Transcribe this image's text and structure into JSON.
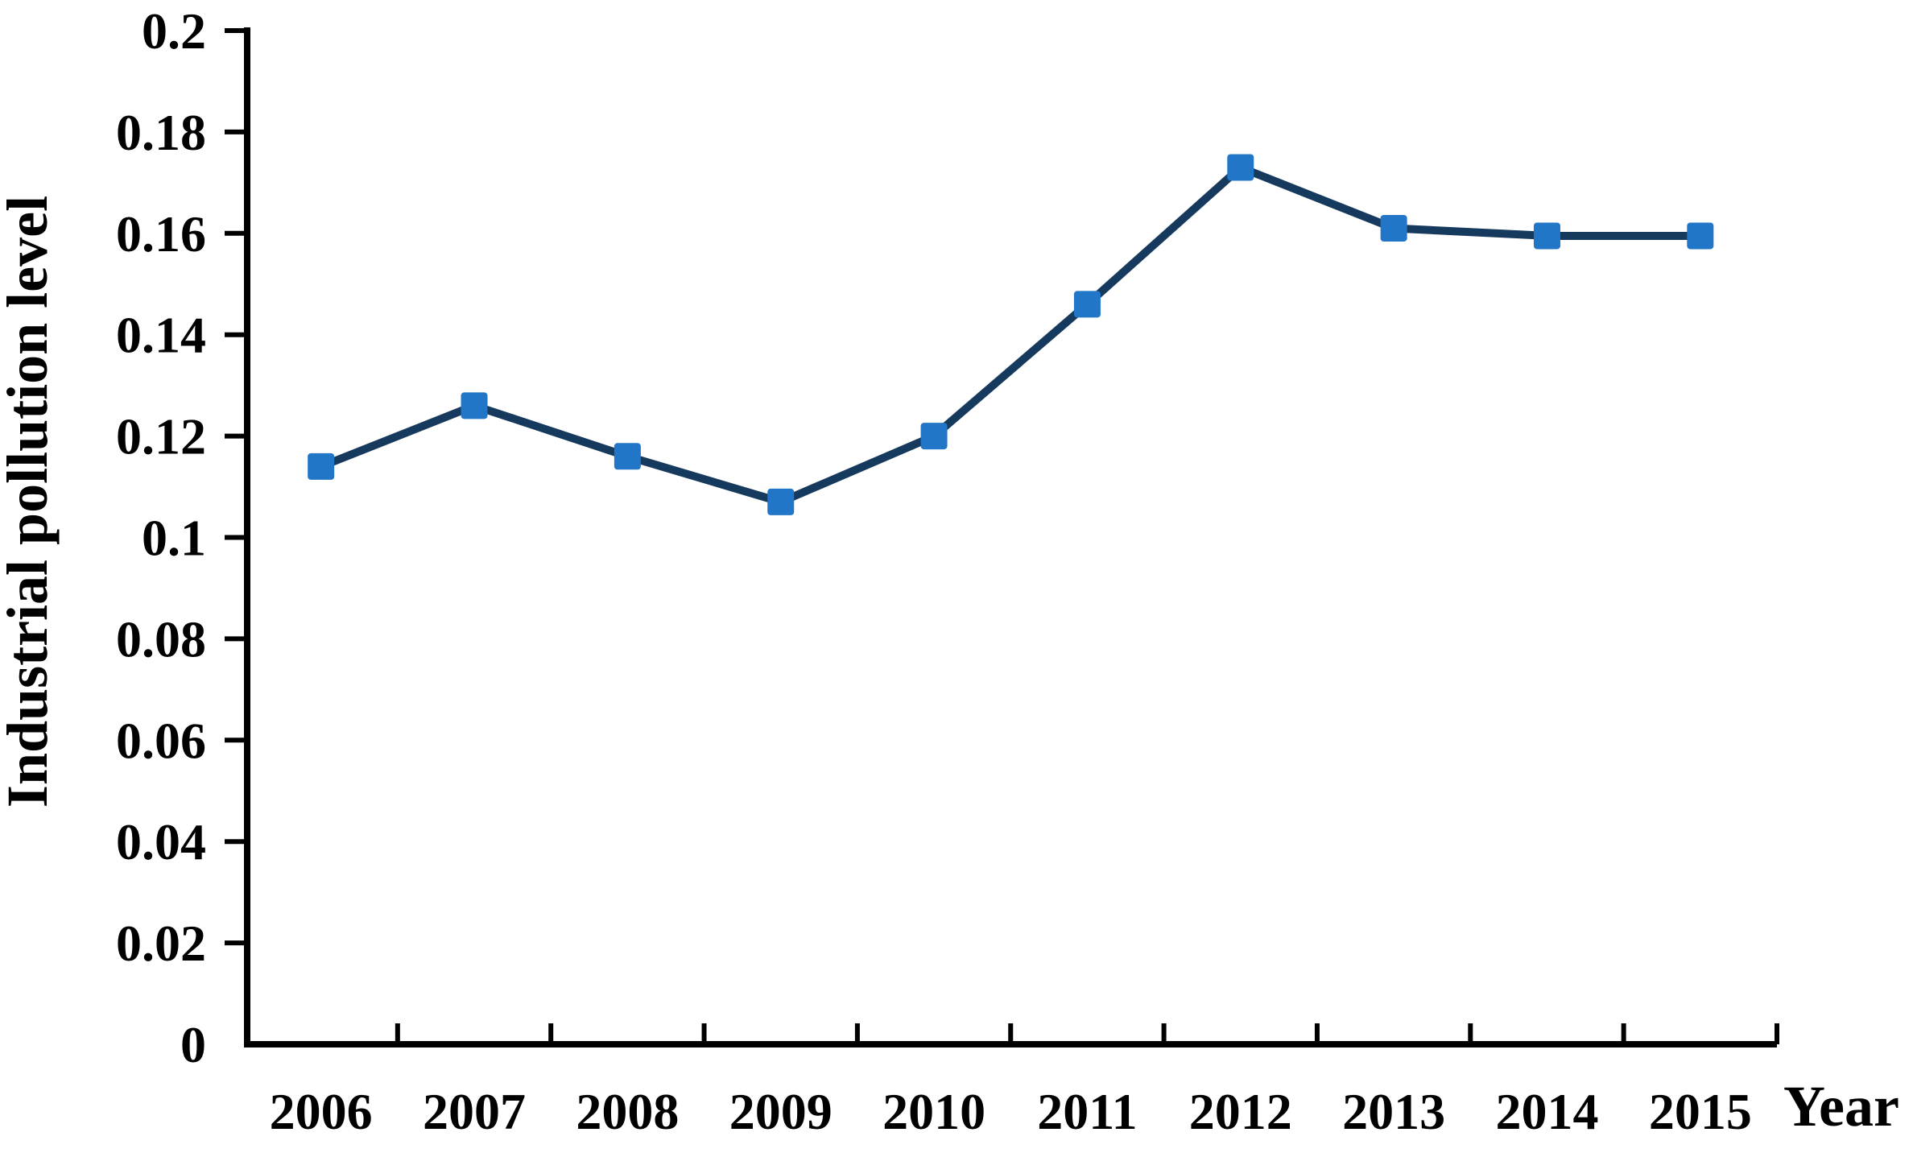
{
  "chart_data": {
    "type": "line",
    "title": "",
    "xlabel": "Year",
    "ylabel": "Industrial pollution level",
    "categories": [
      "2006",
      "2007",
      "2008",
      "2009",
      "2010",
      "2011",
      "2012",
      "2013",
      "2014",
      "2015"
    ],
    "series": [
      {
        "name": "Industrial pollution level",
        "values": [
          0.114,
          0.126,
          0.116,
          0.107,
          0.12,
          0.146,
          0.173,
          0.161,
          0.1595,
          0.1595
        ],
        "line_color": "#16395E",
        "marker": "square",
        "marker_color": "#2176C7"
      }
    ],
    "ylim": [
      0,
      0.2
    ],
    "ytick_step": 0.02,
    "ytick_labels": [
      "0",
      "0.02",
      "0.04",
      "0.06",
      "0.08",
      "0.1",
      "0.12",
      "0.14",
      "0.16",
      "0.18",
      "0.2"
    ],
    "grid": false,
    "legend": "none",
    "axis_color": "#000000",
    "background_color": "#FFFFFF"
  }
}
